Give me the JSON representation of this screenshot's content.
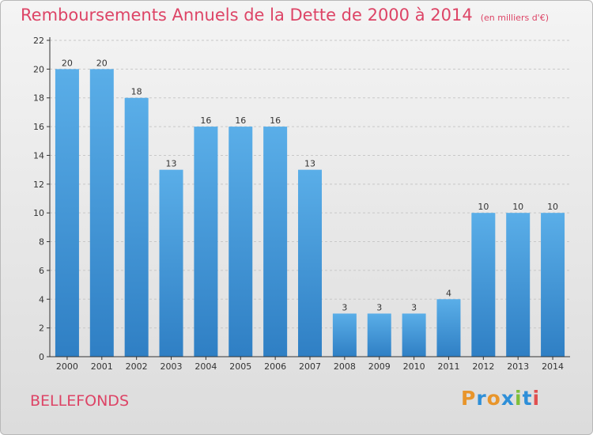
{
  "header": {
    "title": "Remboursements Annuels de la Dette de 2000 à 2014",
    "subtitle": "(en milliers d'€)"
  },
  "footer": {
    "commune": "BELLEFONDS",
    "logo_text": "Proxiti"
  },
  "colors": {
    "title": "#dd4466",
    "bar_top": "#5aaee8",
    "bar_bottom": "#2f7fc4",
    "axis": "#333333",
    "grid": "#c8c8c8",
    "logo_letters": [
      "#e8952b",
      "#2e8fd8",
      "#e8952b",
      "#2e8fd8",
      "#7fbf3a",
      "#2e8fd8",
      "#e05050"
    ]
  },
  "chart_data": {
    "type": "bar",
    "title": "Remboursements Annuels de la Dette de 2000 à 2014",
    "subtitle": "(en milliers d'€)",
    "xlabel": "",
    "ylabel": "",
    "categories": [
      "2000",
      "2001",
      "2002",
      "2003",
      "2004",
      "2005",
      "2006",
      "2007",
      "2008",
      "2009",
      "2010",
      "2011",
      "2012",
      "2013",
      "2014"
    ],
    "values": [
      20,
      20,
      18,
      13,
      16,
      16,
      16,
      13,
      3,
      3,
      3,
      4,
      10,
      10,
      10
    ],
    "ylim": [
      0,
      22
    ],
    "yticks": [
      0,
      2,
      4,
      6,
      8,
      10,
      12,
      14,
      16,
      18,
      20,
      22
    ],
    "grid": "horizontal dashed",
    "legend": "none"
  }
}
